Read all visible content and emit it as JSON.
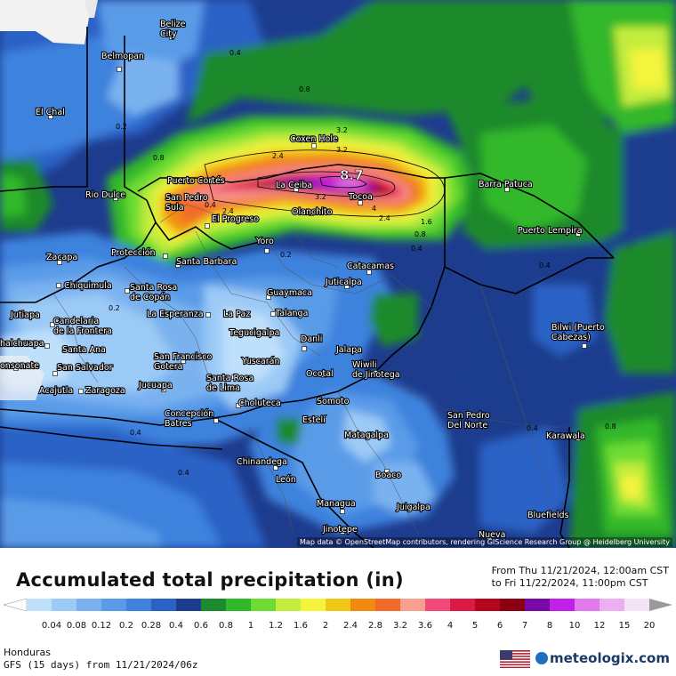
{
  "title": "Accumulated total precipitation (in)",
  "date_from": "From Thu 11/21/2024, 12:00am CST",
  "date_to": "to Fri 11/22/2024, 11:00pm CST",
  "region": "Honduras",
  "model": "GFS (15 days) from 11/21/2024/06z",
  "attribution": "Map data © OpenStreetMap contributors, rendering GIScience Research Group @ Heidelberg University",
  "logo": "meteologix.com",
  "max_label": "8.7",
  "legend": {
    "ticks": [
      "0.04",
      "0.08",
      "0.12",
      "0.2",
      "0.28",
      "0.4",
      "0.6",
      "0.8",
      "1",
      "1.2",
      "1.6",
      "2",
      "2.4",
      "2.8",
      "3.2",
      "3.6",
      "4",
      "5",
      "6",
      "7",
      "8",
      "10",
      "12",
      "15",
      "20"
    ],
    "colors": [
      "#bfe0fb",
      "#9ccaf6",
      "#7ab2f0",
      "#5a9be8",
      "#3d82dd",
      "#2a62c6",
      "#1e3c8e",
      "#1a8a2c",
      "#32b82c",
      "#6ddc32",
      "#c3ec3c",
      "#f4f43c",
      "#f2c818",
      "#f08a12",
      "#f26a2a",
      "#f8a090",
      "#f24a78",
      "#dc1a46",
      "#b4061c",
      "#8a0010",
      "#7a0aa8",
      "#c020e8",
      "#e278ee",
      "#ecb0f2",
      "#f4e4f6",
      "#d0d0d0",
      "#9a9a9a"
    ]
  },
  "cities": [
    {
      "name": "Belize City",
      "display": [
        "Belize",
        "City"
      ]
    },
    {
      "name": "Belmopan",
      "display": [
        "Belmopan"
      ]
    },
    {
      "name": "El Chal",
      "display": [
        "El Chal"
      ]
    },
    {
      "name": "Coxen Hole",
      "display": [
        "Coxen Hole"
      ]
    },
    {
      "name": "Puerto Cortés",
      "display": [
        "Puerto Cortés"
      ]
    },
    {
      "name": "La Ceiba",
      "display": [
        "La Ceiba"
      ]
    },
    {
      "name": "Tocoa",
      "display": [
        "Tocoa"
      ]
    },
    {
      "name": "Barra Patuca",
      "display": [
        "Barra Patuca"
      ]
    },
    {
      "name": "Rio Dulce",
      "display": [
        "Rio Dulce"
      ]
    },
    {
      "name": "San Pedro Sula",
      "display": [
        "San Pedro",
        "Sula"
      ]
    },
    {
      "name": "El Progreso",
      "display": [
        "El Progreso"
      ]
    },
    {
      "name": "Olanchito",
      "display": [
        "Olanchito"
      ]
    },
    {
      "name": "Puerto Lempira",
      "display": [
        "Puerto Lempira"
      ]
    },
    {
      "name": "Yoro",
      "display": [
        "Yoro"
      ]
    },
    {
      "name": "Zacapa",
      "display": [
        "Zacapa"
      ]
    },
    {
      "name": "Protección",
      "display": [
        "Protección"
      ]
    },
    {
      "name": "Santa Barbara",
      "display": [
        "Santa Barbara"
      ]
    },
    {
      "name": "Catacamas",
      "display": [
        "Catacamas"
      ]
    },
    {
      "name": "Chiquimula",
      "display": [
        "Chiquimula"
      ]
    },
    {
      "name": "Santa Rosa de Copán",
      "display": [
        "Santa Rosa",
        "de Copán"
      ]
    },
    {
      "name": "Juticalpa",
      "display": [
        "Juticalpa"
      ]
    },
    {
      "name": "Guaymaca",
      "display": [
        "Guaymaca"
      ]
    },
    {
      "name": "Jutiapa",
      "display": [
        "Jutiapa"
      ]
    },
    {
      "name": "La Esperanza",
      "display": [
        "La Esperanza"
      ]
    },
    {
      "name": "La Paz",
      "display": [
        "La Paz"
      ]
    },
    {
      "name": "Talanga",
      "display": [
        "Talanga"
      ]
    },
    {
      "name": "Candelaria de la Frontera",
      "display": [
        "Candelaria",
        "de la Frontera"
      ]
    },
    {
      "name": "Tegucigalpa",
      "display": [
        "Tegucigalpa"
      ]
    },
    {
      "name": "Bilwi (Puerto Cabezas)",
      "display": [
        "Bilwi (Puerto",
        "Cabezas)"
      ]
    },
    {
      "name": "Chalchuapa",
      "display": [
        "halchuapa"
      ]
    },
    {
      "name": "Santa Ana",
      "display": [
        "Santa Ana"
      ]
    },
    {
      "name": "Danli",
      "display": [
        "Danli"
      ]
    },
    {
      "name": "Jalapa",
      "display": [
        "Jalapa"
      ]
    },
    {
      "name": "San Francisco Gotera",
      "display": [
        "San Francisco",
        "Gotera"
      ]
    },
    {
      "name": "Sonsonate",
      "display": [
        "onsonate"
      ]
    },
    {
      "name": "San Salvador",
      "display": [
        "San Salvador"
      ]
    },
    {
      "name": "Yuscarán",
      "display": [
        "Yuscarán"
      ]
    },
    {
      "name": "Wiwili de Jinotega",
      "display": [
        "Wiwili",
        "de Jinotega"
      ]
    },
    {
      "name": "Ocotal",
      "display": [
        "Ocotal"
      ]
    },
    {
      "name": "Santa Rosa de Lima",
      "display": [
        "Santa Rosa",
        "de Lima"
      ]
    },
    {
      "name": "Acajutla",
      "display": [
        "Acajutla"
      ]
    },
    {
      "name": "Zaragoza",
      "display": [
        "Zaragoza"
      ]
    },
    {
      "name": "Jucuapa",
      "display": [
        "Jucuapa"
      ]
    },
    {
      "name": "Choluteca",
      "display": [
        "Choluteca"
      ]
    },
    {
      "name": "Somoto",
      "display": [
        "Somoto"
      ]
    },
    {
      "name": "Concepción Batres",
      "display": [
        "Concepción",
        "Batres"
      ]
    },
    {
      "name": "Estelí",
      "display": [
        "Estelí"
      ]
    },
    {
      "name": "San Pedro Del Norte",
      "display": [
        "San Pedro",
        "Del Norte"
      ]
    },
    {
      "name": "Matagalpa",
      "display": [
        "Matagalpa"
      ]
    },
    {
      "name": "Karawala",
      "display": [
        "Karawala"
      ]
    },
    {
      "name": "Chinandega",
      "display": [
        "Chinandega"
      ]
    },
    {
      "name": "León",
      "display": [
        "León"
      ]
    },
    {
      "name": "Boaco",
      "display": [
        "Boaco"
      ]
    },
    {
      "name": "Managua",
      "display": [
        "Managua"
      ]
    },
    {
      "name": "Juigalpa",
      "display": [
        "Juigalpa"
      ]
    },
    {
      "name": "Bluefields",
      "display": [
        "Bluefields"
      ]
    },
    {
      "name": "Jinotepe",
      "display": [
        "Jinotepe"
      ]
    },
    {
      "name": "Nueva",
      "display": [
        "Nueva"
      ]
    }
  ],
  "contour_labels": [
    "0.4",
    "0.8",
    "0.2",
    "2.4",
    "3.2",
    "3.2",
    "4",
    "3.2",
    "2.4",
    "1.6",
    "0.8",
    "0.4",
    "0.4",
    "0.8",
    "0.2",
    "0.2",
    "0.4",
    "0.4",
    "0.4",
    "0.4",
    "0.8",
    "2.4"
  ]
}
